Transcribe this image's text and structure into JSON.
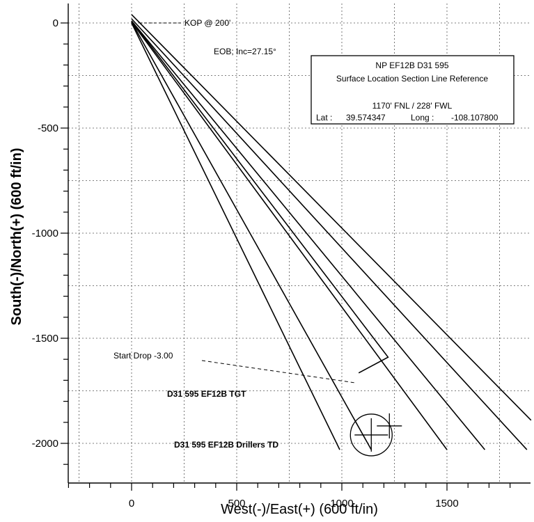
{
  "chart_data": {
    "type": "line",
    "xlabel": "West(-)/East(+) (600 ft/in)",
    "ylabel": "South(-)/North(+) (600 ft/in)",
    "xlim": [
      -300,
      1900
    ],
    "ylim": [
      -2100,
      100
    ],
    "xticks": [
      0,
      500,
      1000,
      1500
    ],
    "yticks": [
      0,
      -500,
      -1000,
      -1500,
      -2000
    ],
    "grid": true,
    "series": [
      {
        "values": [
          [
            0,
            40
          ],
          [
            1900,
            -1890
          ]
        ]
      },
      {
        "values": [
          [
            0,
            20
          ],
          [
            1880,
            -2030
          ]
        ]
      },
      {
        "values": [
          [
            0,
            10
          ],
          [
            1220,
            -1590
          ],
          [
            1080,
            -1665
          ]
        ]
      },
      {
        "values": [
          [
            0,
            10
          ],
          [
            1680,
            -2030
          ]
        ]
      },
      {
        "values": [
          [
            0,
            5
          ],
          [
            1500,
            -2030
          ]
        ]
      },
      {
        "values": [
          [
            0,
            5
          ],
          [
            1140,
            -2030
          ]
        ]
      },
      {
        "values": [
          [
            0,
            0
          ],
          [
            990,
            -2030
          ]
        ]
      }
    ],
    "annotations": [
      {
        "text": "KOP @ 200'",
        "x": 0,
        "y": 0
      },
      {
        "text": "EOB; Inc=27.15°",
        "x": 140,
        "y": -130
      },
      {
        "text": "Start Drop -3.00",
        "x": 1080,
        "y": -1665
      },
      {
        "text": "D31 595 EF12B TGT",
        "x": 1140,
        "y": -1960
      },
      {
        "text": "D31 595 EF12B Drillers TD",
        "x": 1140,
        "y": -1960
      }
    ],
    "info_box": {
      "line1": "NP EF12B D31 595",
      "line2": "Surface Location Section Line Reference",
      "line3": "1170' FNL / 228' FWL",
      "lat_label": "Lat :",
      "lat_value": "39.574347",
      "long_label": "Long :",
      "long_value": "-108.107800"
    }
  }
}
